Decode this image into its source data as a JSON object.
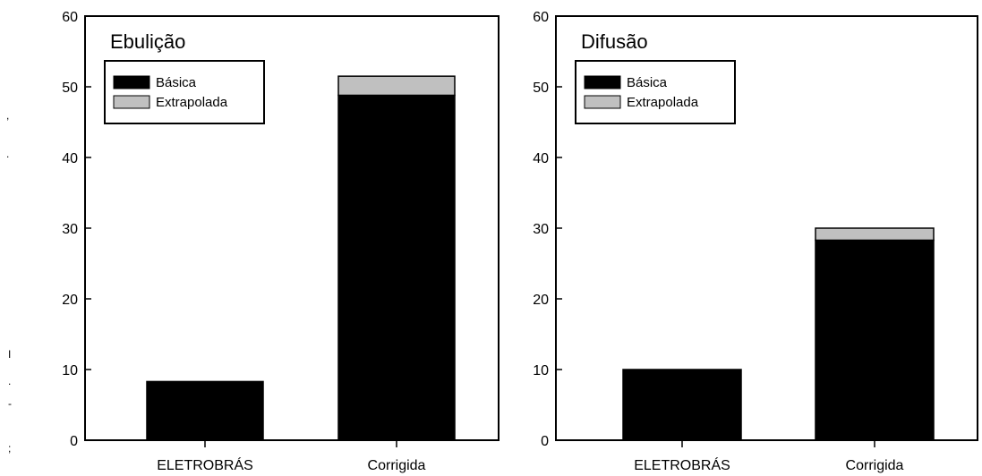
{
  "colors": {
    "basica": "#000000",
    "extrapolada": "#c0c0c0",
    "axis": "#000000",
    "background": "#ffffff"
  },
  "chart_data": [
    {
      "type": "bar",
      "stacked": true,
      "title": "Ebulição",
      "categories": [
        "ELETROBRÁS",
        "Corrigida"
      ],
      "series": [
        {
          "name": "Básica",
          "values": [
            8.3,
            48.8
          ]
        },
        {
          "name": "Extrapolada",
          "values": [
            0,
            2.7
          ]
        }
      ],
      "ylim": [
        0,
        60
      ],
      "yticks": [
        "0",
        "10",
        "20",
        "30",
        "40",
        "50",
        "60"
      ],
      "legend": "top-left",
      "grid": false
    },
    {
      "type": "bar",
      "stacked": true,
      "title": "Difusão",
      "categories": [
        "ELETROBRÁS",
        "Corrigida"
      ],
      "series": [
        {
          "name": "Básica",
          "values": [
            10.0,
            28.3
          ]
        },
        {
          "name": "Extrapolada",
          "values": [
            0,
            1.7
          ]
        }
      ],
      "ylim": [
        0,
        60
      ],
      "yticks": [
        "0",
        "10",
        "20",
        "30",
        "40",
        "50",
        "60"
      ],
      "legend": "top-left",
      "grid": false
    }
  ]
}
